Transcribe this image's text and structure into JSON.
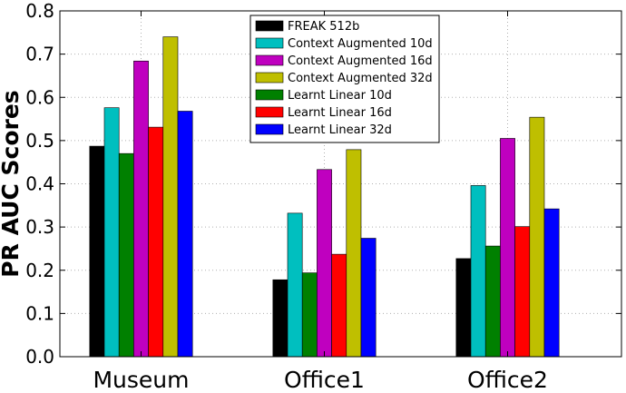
{
  "chart_data": {
    "type": "bar",
    "title": "",
    "xlabel": "",
    "ylabel": "PR AUC Scores",
    "categories": [
      "Museum",
      "Office1",
      "Office2"
    ],
    "ylim": [
      0,
      0.8
    ],
    "yticks": [
      "0.0",
      "0.1",
      "0.2",
      "0.3",
      "0.4",
      "0.5",
      "0.6",
      "0.7",
      "0.8"
    ],
    "grid": true,
    "legend_position": "top-center",
    "series": [
      {
        "name": "FREAK 512b",
        "color": "#000000",
        "values": [
          0.487,
          0.178,
          0.227
        ]
      },
      {
        "name": "Context Augmented 10d",
        "color": "#00bfbf",
        "values": [
          0.576,
          0.332,
          0.396
        ]
      },
      {
        "name": "Learnt Linear 10d",
        "color": "#008000",
        "values": [
          0.47,
          0.194,
          0.256
        ]
      },
      {
        "name": "Context Augmented 16d",
        "color": "#bf00bf",
        "values": [
          0.684,
          0.433,
          0.505
        ]
      },
      {
        "name": "Learnt Linear 16d",
        "color": "#ff0000",
        "values": [
          0.531,
          0.237,
          0.301
        ]
      },
      {
        "name": "Context Augmented 32d",
        "color": "#bfbf00",
        "values": [
          0.74,
          0.479,
          0.554
        ]
      },
      {
        "name": "Learnt Linear 32d",
        "color": "#0000ff",
        "values": [
          0.568,
          0.274,
          0.342
        ]
      }
    ],
    "legend_order": [
      "FREAK 512b",
      "Context Augmented 10d",
      "Context Augmented 16d",
      "Context Augmented 32d",
      "Learnt Linear 10d",
      "Learnt Linear 16d",
      "Learnt Linear 32d"
    ]
  }
}
